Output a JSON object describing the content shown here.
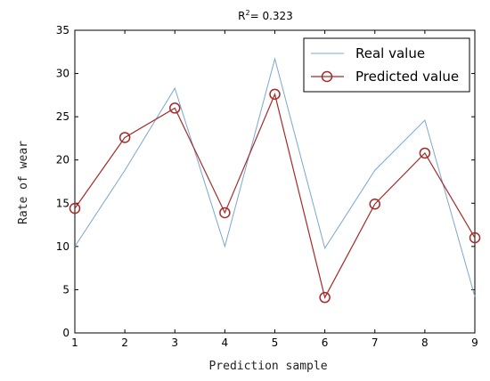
{
  "chart_data": {
    "type": "line",
    "title": {
      "prefix": "R",
      "superscript": "2",
      "value": "= 0.323"
    },
    "xlabel": "Prediction sample",
    "ylabel": "Rate of wear",
    "x": [
      1,
      2,
      3,
      4,
      5,
      6,
      7,
      8,
      9
    ],
    "xlim": [
      1,
      9
    ],
    "ylim": [
      0,
      35
    ],
    "xticks": [
      "1",
      "2",
      "3",
      "4",
      "5",
      "6",
      "7",
      "8",
      "9"
    ],
    "yticks": [
      "0",
      "5",
      "10",
      "15",
      "20",
      "25",
      "30",
      "35"
    ],
    "grid": false,
    "legend_position": "top-right",
    "series": [
      {
        "name": "Real value",
        "color": "#7ba7cf",
        "marker": "none",
        "values": [
          10.0,
          18.8,
          28.3,
          10.0,
          31.7,
          9.8,
          18.8,
          24.6,
          4.2
        ]
      },
      {
        "name": "Predicted value",
        "color": "#a52a2a",
        "marker": "circle",
        "values": [
          14.4,
          22.6,
          26.0,
          13.9,
          27.6,
          4.1,
          14.9,
          20.8,
          11.0
        ]
      }
    ]
  }
}
